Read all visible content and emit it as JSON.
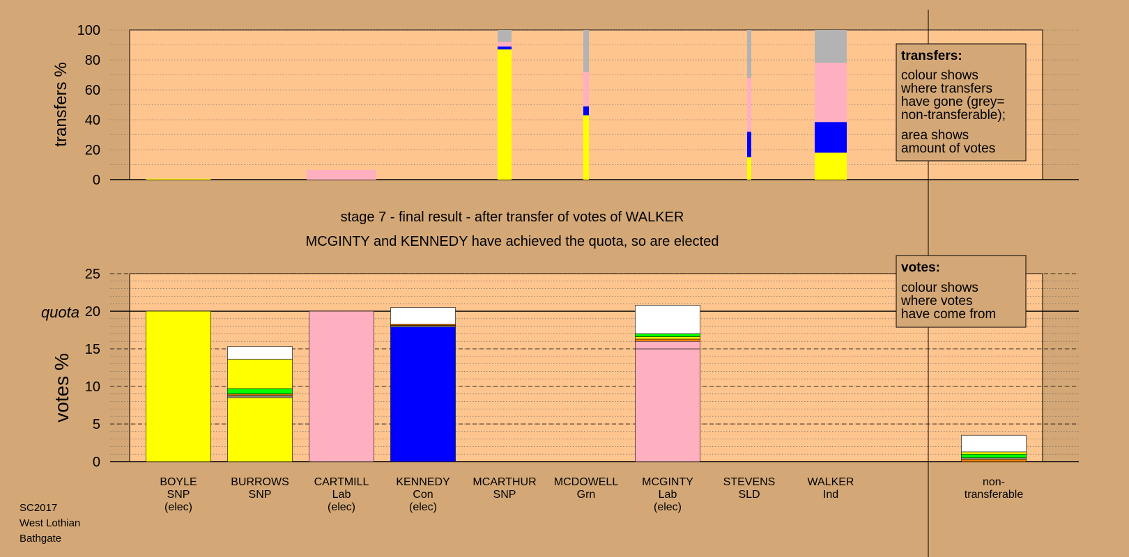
{
  "colors": {
    "background": "#d4a876",
    "plot_bg": "#ffc58f",
    "SNP": "#ffff00",
    "Lab": "#ffb0c0",
    "Con": "#0000ff",
    "Grn": "#00ff00",
    "SLD": "#ff8800",
    "Ind": "#888888",
    "nontransferable": "#b3b3b3",
    "surplus": "#ffffff"
  },
  "stage": {
    "line1": "stage 7 - final result - after transfer of votes of WALKER",
    "line2": "MCGINTY and KENNEDY have achieved the quota, so are elected"
  },
  "footer": {
    "line1": "SC2017",
    "line2": "West Lothian",
    "line3": "Bathgate"
  },
  "chart_data": [
    {
      "type": "bar",
      "title": "transfers",
      "ylabel": "transfers %",
      "ylim": [
        0,
        100
      ],
      "yticks": [
        0,
        20,
        40,
        60,
        80,
        100
      ],
      "grid": true,
      "legend": {
        "placement": "top-right",
        "title": "transfers:",
        "lines": [
          "colour shows",
          "where transfers",
          "have gone (grey=",
          "non-transferable);",
          "area shows",
          "amount of votes"
        ]
      },
      "bars": [
        {
          "candidate": "BOYLE",
          "segments": [
            {
              "color": "SNP",
              "from": 0,
              "to": 0.6
            }
          ]
        },
        {
          "candidate": "CARTMILL",
          "segments": [
            {
              "color": "Lab",
              "from": 0,
              "to": 6.5
            }
          ]
        },
        {
          "candidate": "MCARTHUR",
          "segments": [
            {
              "color": "SNP",
              "from": 0,
              "to": 87
            },
            {
              "color": "Con",
              "from": 87,
              "to": 89
            },
            {
              "color": "Lab",
              "from": 89,
              "to": 92
            },
            {
              "color": "nontransferable",
              "from": 92,
              "to": 100
            }
          ]
        },
        {
          "candidate": "MCDOWELL",
          "segments": [
            {
              "color": "SNP",
              "from": 0,
              "to": 43
            },
            {
              "color": "Con",
              "from": 43,
              "to": 49
            },
            {
              "color": "Lab",
              "from": 49,
              "to": 72
            },
            {
              "color": "nontransferable",
              "from": 72,
              "to": 100
            }
          ]
        },
        {
          "candidate": "STEVENS",
          "segments": [
            {
              "color": "SNP",
              "from": 0,
              "to": 15
            },
            {
              "color": "Con",
              "from": 15,
              "to": 32
            },
            {
              "color": "Lab",
              "from": 32,
              "to": 68
            },
            {
              "color": "nontransferable",
              "from": 68,
              "to": 100
            }
          ]
        },
        {
          "candidate": "WALKER",
          "segments": [
            {
              "color": "SNP",
              "from": 0,
              "to": 18
            },
            {
              "color": "Con",
              "from": 18,
              "to": 38.5
            },
            {
              "color": "Lab",
              "from": 38.5,
              "to": 78
            },
            {
              "color": "nontransferable",
              "from": 78,
              "to": 100
            }
          ]
        }
      ]
    },
    {
      "type": "bar",
      "title": "votes",
      "ylabel": "votes %",
      "ylim": [
        0,
        25
      ],
      "yticks": [
        0,
        5,
        10,
        15,
        20,
        25
      ],
      "quota": {
        "label": "quota",
        "value": 20
      },
      "grid": true,
      "legend": {
        "placement": "top-right",
        "title": "votes:",
        "lines": [
          "colour shows",
          "where votes",
          "have come from"
        ]
      },
      "categories": [
        {
          "name": "BOYLE",
          "party": "SNP",
          "status": "(elec)"
        },
        {
          "name": "BURROWS",
          "party": "SNP",
          "status": ""
        },
        {
          "name": "CARTMILL",
          "party": "Lab",
          "status": "(elec)"
        },
        {
          "name": "KENNEDY",
          "party": "Con",
          "status": "(elec)"
        },
        {
          "name": "MCARTHUR",
          "party": "SNP",
          "status": ""
        },
        {
          "name": "MCDOWELL",
          "party": "Grn",
          "status": ""
        },
        {
          "name": "MCGINTY",
          "party": "Lab",
          "status": "(elec)"
        },
        {
          "name": "STEVENS",
          "party": "SLD",
          "status": ""
        },
        {
          "name": "WALKER",
          "party": "Ind",
          "status": ""
        }
      ],
      "nontransferable_label": [
        "non-",
        "transferable"
      ],
      "bars": [
        {
          "candidate": "BOYLE",
          "segments": [
            {
              "color": "SNP",
              "from": 0,
              "to": 20
            }
          ]
        },
        {
          "candidate": "BURROWS",
          "segments": [
            {
              "color": "SNP",
              "from": 0,
              "to": 8.5
            },
            {
              "color": "Ind",
              "from": 8.5,
              "to": 8.8
            },
            {
              "color": "SLD",
              "from": 8.8,
              "to": 9.0
            },
            {
              "color": "Grn",
              "from": 9.0,
              "to": 9.7
            },
            {
              "color": "SNP",
              "from": 9.7,
              "to": 13.6
            },
            {
              "color": "surplus",
              "from": 13.6,
              "to": 15.3
            }
          ]
        },
        {
          "candidate": "CARTMILL",
          "segments": [
            {
              "color": "Lab",
              "from": 0,
              "to": 20
            }
          ]
        },
        {
          "candidate": "KENNEDY",
          "segments": [
            {
              "color": "Con",
              "from": 0,
              "to": 17.9
            },
            {
              "color": "Ind",
              "from": 17.9,
              "to": 18.1
            },
            {
              "color": "SLD",
              "from": 18.1,
              "to": 18.3
            },
            {
              "color": "surplus",
              "from": 18.3,
              "to": 20.5
            }
          ]
        },
        {
          "candidate": "MCGINTY",
          "segments": [
            {
              "color": "Lab",
              "from": 0,
              "to": 15
            },
            {
              "color": "Lab",
              "from": 15,
              "to": 16.0
            },
            {
              "color": "SLD",
              "from": 16.0,
              "to": 16.3
            },
            {
              "color": "SNP",
              "from": 16.3,
              "to": 16.6
            },
            {
              "color": "Grn",
              "from": 16.6,
              "to": 17.0
            },
            {
              "color": "surplus",
              "from": 17.0,
              "to": 20.8
            }
          ]
        },
        {
          "candidate": "non-transferable",
          "segments": [
            {
              "color": "SLD",
              "from": 0,
              "to": 0.3
            },
            {
              "color": "Ind",
              "from": 0.3,
              "to": 0.5
            },
            {
              "color": "Grn",
              "from": 0.5,
              "to": 1.0
            },
            {
              "color": "SNP",
              "from": 1.0,
              "to": 1.3
            },
            {
              "color": "surplus",
              "from": 1.3,
              "to": 3.5
            }
          ]
        }
      ]
    }
  ]
}
